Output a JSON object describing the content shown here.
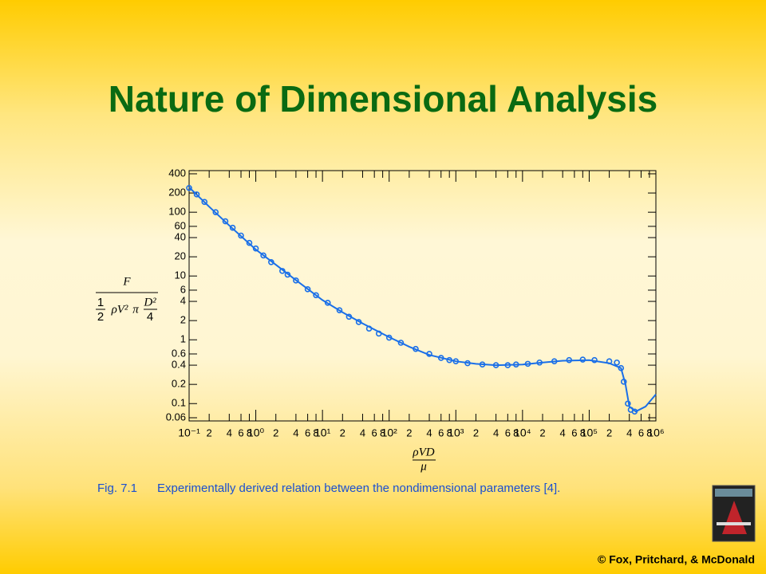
{
  "title": "Nature of Dimensional Analysis",
  "chart_data": {
    "type": "line",
    "y_label": {
      "numerator": "F",
      "half_top": "1",
      "half_bottom": "2",
      "rho_v": "ρV²",
      "pi": "π",
      "d_top": "D²",
      "d_bottom": "4"
    },
    "x_label": {
      "numerator": "ρVD",
      "denominator": "μ"
    },
    "xscale": "log",
    "yscale": "log",
    "xlim": [
      0.1,
      1000000
    ],
    "ylim": [
      0.06,
      400
    ],
    "xticks": [
      {
        "value": 0.1,
        "label": "10⁻¹"
      },
      {
        "value": 0.2,
        "label": "2"
      },
      {
        "value": 0.4,
        "label": "4"
      },
      {
        "value": 0.6,
        "label": "6"
      },
      {
        "value": 0.8,
        "label": "8"
      },
      {
        "value": 1,
        "label": "10⁰"
      },
      {
        "value": 2,
        "label": "2"
      },
      {
        "value": 4,
        "label": "4"
      },
      {
        "value": 6,
        "label": "6"
      },
      {
        "value": 8,
        "label": "8"
      },
      {
        "value": 10,
        "label": "10¹"
      },
      {
        "value": 20,
        "label": "2"
      },
      {
        "value": 40,
        "label": "4"
      },
      {
        "value": 60,
        "label": "6"
      },
      {
        "value": 80,
        "label": "8"
      },
      {
        "value": 100,
        "label": "10²"
      },
      {
        "value": 200,
        "label": "2"
      },
      {
        "value": 400,
        "label": "4"
      },
      {
        "value": 600,
        "label": "6"
      },
      {
        "value": 800,
        "label": "8"
      },
      {
        "value": 1000,
        "label": "10³"
      },
      {
        "value": 2000,
        "label": "2"
      },
      {
        "value": 4000,
        "label": "4"
      },
      {
        "value": 6000,
        "label": "6"
      },
      {
        "value": 8000,
        "label": "8"
      },
      {
        "value": 10000,
        "label": "10⁴"
      },
      {
        "value": 20000,
        "label": "2"
      },
      {
        "value": 40000,
        "label": "4"
      },
      {
        "value": 60000,
        "label": "6"
      },
      {
        "value": 80000,
        "label": "8"
      },
      {
        "value": 100000,
        "label": "10⁵"
      },
      {
        "value": 200000,
        "label": "2"
      },
      {
        "value": 400000,
        "label": "4"
      },
      {
        "value": 600000,
        "label": "6"
      },
      {
        "value": 800000,
        "label": "8"
      },
      {
        "value": 1000000,
        "label": "10⁶"
      }
    ],
    "yticks": [
      400,
      200,
      100,
      60,
      40,
      20,
      10,
      6,
      4,
      2,
      1,
      0.6,
      0.4,
      0.2,
      0.1,
      0.06
    ],
    "series": [
      {
        "name": "curve",
        "color": "#1a6fe8",
        "x": [
          0.1,
          0.2,
          0.4,
          1,
          2,
          4,
          10,
          20,
          40,
          100,
          200,
          400,
          1000,
          2000,
          4000,
          10000,
          20000,
          40000,
          100000,
          200000,
          300000,
          350000,
          400000,
          500000,
          700000,
          1000000
        ],
        "values": [
          245,
          122,
          62,
          26,
          15,
          8.6,
          4.2,
          2.7,
          1.8,
          1.1,
          0.78,
          0.58,
          0.46,
          0.42,
          0.4,
          0.41,
          0.44,
          0.47,
          0.48,
          0.43,
          0.36,
          0.2,
          0.09,
          0.075,
          0.09,
          0.14
        ]
      },
      {
        "name": "measurements",
        "color": "#1a6fe8",
        "x": [
          0.1,
          0.13,
          0.17,
          0.25,
          0.35,
          0.45,
          0.6,
          0.8,
          1,
          1.3,
          1.7,
          2.5,
          3,
          4,
          6,
          8,
          12,
          18,
          25,
          35,
          50,
          70,
          100,
          150,
          250,
          400,
          600,
          800,
          1000,
          1500,
          2500,
          4000,
          6000,
          8000,
          12000,
          18000,
          30000,
          50000,
          80000,
          120000,
          200000,
          260000,
          300000,
          330000,
          380000,
          420000,
          480000
        ],
        "values": [
          240,
          190,
          145,
          100,
          72,
          57,
          43,
          33,
          27,
          21,
          16.5,
          12,
          10.5,
          8.5,
          6.2,
          5,
          3.8,
          2.9,
          2.3,
          1.9,
          1.5,
          1.25,
          1.08,
          0.9,
          0.72,
          0.6,
          0.52,
          0.48,
          0.46,
          0.43,
          0.41,
          0.4,
          0.4,
          0.41,
          0.42,
          0.44,
          0.46,
          0.48,
          0.49,
          0.48,
          0.46,
          0.44,
          0.36,
          0.22,
          0.1,
          0.08,
          0.075
        ]
      }
    ]
  },
  "caption": {
    "label": "Fig. 7.1",
    "text": "Experimentally derived relation between the nondimensional parameters [4]."
  },
  "footer": "© Fox, Pritchard, & McDonald"
}
